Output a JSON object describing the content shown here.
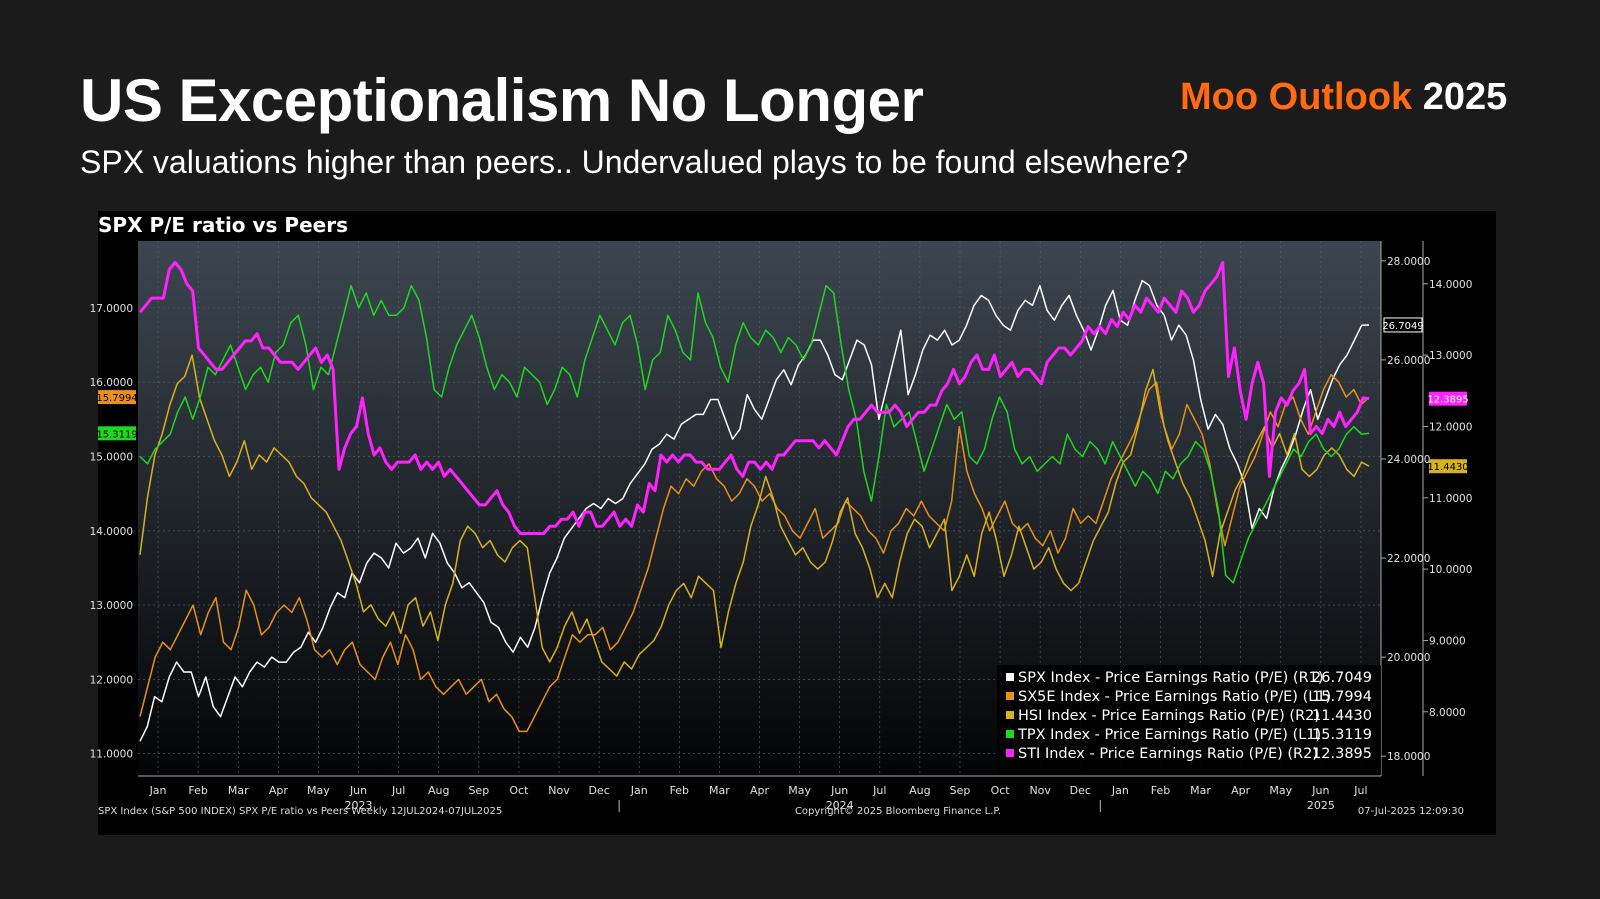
{
  "slide": {
    "title": "US Exceptionalism No Longer",
    "subtitle": "SPX valuations higher than peers.. Undervalued plays to be found elsewhere?",
    "brand_accent": "Moo Outlook",
    "brand_year": "2025"
  },
  "colors": {
    "background": "#1b1b1b",
    "brand_accent": "#ff6a13",
    "spx": "#ffffff",
    "sx5e": "#e8901a",
    "hsi": "#d9b01e",
    "tpx": "#1ed81e",
    "sti": "#ff22ff"
  },
  "chart_data": {
    "type": "line",
    "title": "SPX P/E ratio vs Peers",
    "footer_left": "SPX Index (S&P 500 INDEX) SPX P/E ratio vs Peers  Weekly 12JUL2024-07JUL2025",
    "footer_center": "Copyright© 2025 Bloomberg Finance L.P.",
    "footer_right": "07-Jul-2025 12:09:30",
    "frequency": "weekly",
    "x_axis": {
      "months": [
        "Jan",
        "Feb",
        "Mar",
        "Apr",
        "May",
        "Jun",
        "Jul",
        "Aug",
        "Sep",
        "Oct",
        "Nov",
        "Dec",
        "Jan",
        "Feb",
        "Mar",
        "Apr",
        "May",
        "Jun",
        "Jul",
        "Aug",
        "Sep",
        "Oct",
        "Nov",
        "Dec",
        "Jan",
        "Feb",
        "Mar",
        "Apr",
        "May",
        "Jun",
        "Jul"
      ],
      "years": [
        "2023",
        "2024",
        "2025"
      ]
    },
    "left_axis": {
      "ticks": [
        "11.0000",
        "12.0000",
        "13.0000",
        "14.0000",
        "15.0000",
        "16.0000",
        "17.0000"
      ],
      "range": [
        10.7,
        17.9
      ]
    },
    "right_axis_r1": {
      "ticks": [
        "18.0000",
        "20.0000",
        "22.0000",
        "24.0000",
        "26.0000",
        "28.0000"
      ],
      "range": [
        17.6,
        28.4
      ]
    },
    "right_axis_r2": {
      "ticks": [
        "8.0000",
        "9.0000",
        "10.0000",
        "11.0000",
        "12.0000",
        "13.0000",
        "14.0000"
      ],
      "range": [
        7.1,
        14.6
      ]
    },
    "legend_position": "bottom-right",
    "series": [
      {
        "key": "spx",
        "name": "SPX Index - Price Earnings Ratio (P/E) (R1)",
        "axis": "R1",
        "last": "26.7049",
        "values": [
          18.3,
          18.6,
          19.2,
          19.1,
          19.6,
          19.9,
          19.7,
          19.7,
          19.2,
          19.6,
          19.0,
          18.8,
          19.2,
          19.6,
          19.4,
          19.7,
          19.9,
          19.8,
          20.0,
          19.9,
          19.9,
          20.1,
          20.2,
          20.5,
          20.3,
          20.6,
          21.0,
          21.3,
          21.2,
          21.7,
          21.5,
          21.9,
          22.1,
          22.0,
          21.8,
          22.3,
          22.1,
          22.2,
          22.4,
          22.0,
          22.5,
          22.3,
          21.9,
          21.7,
          21.4,
          21.5,
          21.3,
          21.1,
          20.7,
          20.6,
          20.3,
          20.1,
          20.4,
          20.2,
          20.6,
          21.2,
          21.7,
          22.0,
          22.4,
          22.6,
          22.8,
          23.0,
          23.1,
          23.0,
          23.2,
          23.1,
          23.2,
          23.5,
          23.7,
          23.9,
          24.2,
          24.3,
          24.5,
          24.4,
          24.7,
          24.8,
          24.9,
          24.9,
          25.2,
          25.2,
          24.8,
          24.4,
          24.6,
          25.3,
          25.0,
          24.8,
          25.2,
          25.6,
          25.8,
          25.5,
          25.9,
          26.1,
          26.4,
          26.4,
          26.1,
          25.7,
          25.6,
          26.0,
          26.4,
          26.3,
          25.9,
          24.8,
          25.4,
          26.0,
          26.6,
          25.3,
          25.7,
          26.2,
          26.5,
          26.4,
          26.6,
          26.3,
          26.4,
          26.7,
          27.1,
          27.3,
          27.2,
          26.9,
          26.7,
          26.6,
          27.0,
          27.2,
          27.1,
          27.5,
          27.0,
          26.8,
          27.1,
          27.3,
          26.9,
          26.6,
          26.2,
          26.6,
          27.1,
          27.4,
          26.8,
          26.7,
          27.2,
          27.6,
          27.5,
          27.1,
          26.9,
          26.4,
          26.7,
          26.5,
          26.0,
          25.2,
          24.6,
          24.9,
          24.7,
          24.2,
          23.9,
          23.5,
          22.6,
          23.0,
          22.8,
          23.4,
          23.8,
          24.1,
          24.5,
          25.0,
          25.4,
          24.8,
          25.2,
          25.6,
          25.9,
          26.1,
          26.4,
          26.7,
          26.7049
        ]
      },
      {
        "key": "sx5e",
        "name": "SX5E Index - Price Earnings Ratio (P/E) (L1)",
        "axis": "L1",
        "last": "15.7994",
        "values": [
          11.5,
          11.9,
          12.3,
          12.5,
          12.4,
          12.6,
          12.8,
          13.0,
          12.6,
          12.9,
          13.1,
          12.5,
          12.4,
          12.7,
          13.2,
          13.0,
          12.6,
          12.7,
          12.9,
          13.0,
          12.9,
          13.1,
          12.8,
          12.4,
          12.3,
          12.4,
          12.2,
          12.4,
          12.5,
          12.2,
          12.1,
          12.0,
          12.3,
          12.5,
          12.2,
          12.6,
          12.4,
          12.0,
          12.1,
          11.9,
          11.8,
          11.9,
          12.0,
          11.8,
          11.9,
          12.0,
          11.7,
          11.8,
          11.6,
          11.5,
          11.3,
          11.3,
          11.5,
          11.7,
          11.9,
          12.0,
          12.3,
          12.6,
          12.5,
          12.6,
          12.6,
          12.7,
          12.4,
          12.5,
          12.7,
          12.9,
          13.2,
          13.5,
          13.9,
          14.3,
          14.6,
          14.5,
          14.7,
          14.6,
          14.8,
          14.9,
          14.7,
          14.6,
          14.4,
          14.5,
          14.7,
          14.6,
          14.4,
          14.5,
          14.3,
          14.2,
          14.0,
          13.9,
          14.1,
          14.3,
          13.9,
          14.0,
          14.1,
          14.4,
          14.3,
          14.2,
          14.0,
          13.9,
          13.7,
          14.0,
          14.1,
          14.3,
          14.2,
          14.4,
          14.2,
          14.1,
          14.0,
          14.4,
          15.4,
          14.8,
          14.5,
          14.3,
          14.0,
          14.2,
          14.4,
          14.1,
          14.0,
          14.1,
          13.9,
          13.8,
          14.0,
          13.7,
          13.9,
          14.3,
          14.1,
          14.2,
          14.1,
          14.4,
          14.7,
          14.9,
          15.1,
          15.3,
          15.6,
          15.9,
          16.0,
          15.4,
          15.1,
          15.3,
          15.7,
          15.5,
          15.3,
          14.9,
          14.3,
          13.8,
          14.2,
          14.6,
          14.8,
          15.0,
          15.3,
          15.6,
          15.4,
          15.7,
          15.8,
          15.5,
          15.3,
          15.6,
          15.9,
          16.1,
          16.0,
          15.8,
          15.9,
          15.7,
          15.7994
        ]
      },
      {
        "key": "hsi",
        "name": "HSI Index - Price Earnings Ratio (P/E) (R2)",
        "axis": "R2",
        "last": "11.4430",
        "values": [
          10.2,
          11.0,
          11.6,
          11.9,
          12.3,
          12.6,
          12.7,
          13.0,
          12.4,
          12.1,
          11.8,
          11.6,
          11.3,
          11.5,
          11.8,
          11.4,
          11.6,
          11.5,
          11.7,
          11.6,
          11.5,
          11.3,
          11.2,
          11.0,
          10.9,
          10.8,
          10.6,
          10.4,
          10.1,
          9.8,
          9.4,
          9.5,
          9.3,
          9.2,
          9.4,
          9.1,
          9.5,
          9.6,
          9.2,
          9.4,
          9.0,
          9.5,
          9.8,
          10.4,
          10.6,
          10.5,
          10.3,
          10.4,
          10.2,
          10.1,
          10.3,
          10.4,
          10.3,
          9.6,
          8.9,
          8.7,
          8.9,
          9.2,
          9.4,
          9.1,
          9.3,
          9.0,
          8.7,
          8.6,
          8.5,
          8.7,
          8.6,
          8.8,
          8.9,
          9.0,
          9.2,
          9.5,
          9.7,
          9.8,
          9.6,
          9.9,
          9.8,
          9.7,
          8.9,
          9.4,
          9.8,
          10.1,
          10.6,
          10.9,
          11.3,
          11.0,
          10.6,
          10.4,
          10.2,
          10.3,
          10.1,
          10.0,
          10.1,
          10.4,
          10.8,
          11.0,
          10.5,
          10.3,
          10.0,
          9.6,
          9.8,
          9.6,
          10.1,
          10.5,
          10.7,
          10.6,
          10.3,
          10.5,
          10.7,
          9.7,
          9.9,
          10.2,
          9.9,
          10.5,
          10.8,
          10.4,
          9.9,
          10.2,
          10.6,
          10.3,
          10.0,
          10.1,
          10.3,
          10.0,
          9.8,
          9.7,
          9.8,
          10.1,
          10.4,
          10.6,
          10.8,
          11.2,
          11.5,
          11.6,
          12.0,
          12.5,
          12.8,
          12.2,
          11.8,
          11.5,
          11.2,
          11.0,
          10.7,
          10.4,
          9.9,
          10.5,
          10.8,
          11.1,
          11.3,
          11.6,
          11.8,
          12.0,
          11.7,
          11.9,
          11.6,
          11.9,
          11.4,
          11.3,
          11.4,
          11.6,
          11.7,
          11.6,
          11.4,
          11.3,
          11.5,
          11.443
        ]
      },
      {
        "key": "tpx",
        "name": "TPX Index - Price Earnings Ratio (P/E) (L1)",
        "axis": "L1",
        "last": "15.3119",
        "values": [
          15.0,
          14.9,
          15.1,
          15.2,
          15.3,
          15.6,
          15.8,
          15.5,
          15.8,
          16.2,
          16.1,
          16.3,
          16.5,
          16.2,
          15.9,
          16.1,
          16.2,
          16.0,
          16.4,
          16.5,
          16.8,
          16.9,
          16.5,
          15.9,
          16.2,
          16.1,
          16.5,
          16.9,
          17.3,
          17.0,
          17.2,
          16.9,
          17.1,
          16.9,
          16.9,
          17.0,
          17.3,
          17.1,
          16.6,
          15.9,
          15.8,
          16.2,
          16.5,
          16.7,
          16.9,
          16.6,
          16.2,
          15.9,
          16.1,
          16.0,
          15.8,
          16.2,
          16.1,
          16.0,
          15.7,
          15.9,
          16.2,
          16.1,
          15.8,
          16.3,
          16.6,
          16.9,
          16.7,
          16.5,
          16.8,
          16.9,
          16.5,
          15.9,
          16.3,
          16.4,
          16.9,
          16.7,
          16.4,
          16.3,
          17.2,
          16.8,
          16.6,
          16.2,
          16.0,
          16.5,
          16.8,
          16.6,
          16.5,
          16.7,
          16.6,
          16.4,
          16.6,
          16.5,
          16.3,
          16.5,
          16.9,
          17.3,
          17.2,
          16.5,
          15.9,
          15.5,
          14.8,
          14.4,
          15.0,
          15.7,
          15.4,
          15.5,
          15.6,
          15.2,
          14.8,
          15.1,
          15.4,
          15.7,
          15.5,
          15.6,
          15.0,
          14.9,
          15.1,
          15.5,
          15.8,
          15.6,
          15.1,
          14.9,
          15.0,
          14.8,
          14.9,
          15.0,
          14.9,
          15.3,
          15.1,
          15.0,
          15.2,
          15.1,
          14.9,
          15.2,
          15.0,
          14.8,
          14.6,
          14.8,
          14.7,
          14.5,
          14.8,
          14.7,
          14.9,
          15.0,
          15.2,
          15.1,
          14.8,
          14.3,
          13.4,
          13.3,
          13.6,
          13.9,
          14.1,
          14.3,
          14.5,
          14.7,
          14.9,
          15.1,
          15.0,
          15.2,
          15.3,
          15.1,
          15.0,
          15.1,
          15.3,
          15.4,
          15.3,
          15.3119
        ]
      },
      {
        "key": "sti",
        "name": "STI Index - Price Earnings Ratio (P/E) (R2)",
        "axis": "R2",
        "last": "12.3895",
        "values": [
          13.6,
          13.7,
          13.8,
          13.8,
          13.8,
          14.2,
          14.3,
          14.2,
          14.0,
          13.9,
          13.1,
          13.0,
          12.9,
          12.8,
          12.8,
          12.9,
          13.0,
          13.1,
          13.2,
          13.2,
          13.3,
          13.1,
          13.1,
          13.0,
          12.9,
          12.9,
          12.9,
          12.8,
          12.9,
          13.0,
          13.1,
          12.9,
          13.0,
          12.8,
          11.4,
          11.7,
          11.9,
          12.0,
          12.4,
          11.9,
          11.6,
          11.7,
          11.5,
          11.4,
          11.5,
          11.5,
          11.5,
          11.6,
          11.4,
          11.5,
          11.4,
          11.5,
          11.3,
          11.4,
          11.3,
          11.2,
          11.1,
          11.0,
          10.9,
          10.9,
          11.0,
          11.1,
          10.9,
          10.8,
          10.6,
          10.5,
          10.5,
          10.5,
          10.5,
          10.5,
          10.6,
          10.6,
          10.7,
          10.7,
          10.8,
          10.6,
          10.8,
          10.8,
          10.6,
          10.6,
          10.7,
          10.8,
          10.6,
          10.7,
          10.6,
          10.9,
          10.8,
          11.2,
          11.1,
          11.6,
          11.5,
          11.6,
          11.5,
          11.6,
          11.6,
          11.5,
          11.5,
          11.4,
          11.4,
          11.4,
          11.5,
          11.6,
          11.4,
          11.3,
          11.5,
          11.5,
          11.4,
          11.5,
          11.4,
          11.6,
          11.6,
          11.7,
          11.8,
          11.8,
          11.8,
          11.8,
          11.7,
          11.8,
          11.7,
          11.6,
          11.8,
          12.0,
          12.1,
          12.1,
          12.2,
          12.3,
          12.2,
          12.2,
          12.2,
          12.3,
          12.2,
          12.0,
          12.1,
          12.2,
          12.2,
          12.3,
          12.3,
          12.5,
          12.6,
          12.8,
          12.6,
          12.7,
          12.9,
          13.0,
          12.8,
          12.8,
          13.0,
          12.7,
          12.8,
          12.9,
          12.7,
          12.8,
          12.8,
          12.7,
          12.6,
          12.9,
          13.0,
          13.1,
          13.1,
          13.0,
          13.1,
          13.2,
          13.4,
          13.3,
          13.4,
          13.3,
          13.5,
          13.4,
          13.6,
          13.5,
          13.7,
          13.6,
          13.8,
          13.7,
          13.6,
          13.8,
          13.7,
          13.6,
          13.9,
          13.8,
          13.6,
          13.7,
          13.9,
          14.0,
          14.1,
          14.3,
          12.7,
          13.1,
          12.5,
          12.1,
          12.6,
          12.9,
          12.6,
          11.3,
          12.2,
          12.4,
          12.3,
          12.5,
          12.6,
          12.8,
          11.9,
          12.0,
          11.9,
          12.1,
          12.0,
          12.2,
          12.0,
          12.1,
          12.2,
          12.4,
          12.3895
        ]
      }
    ]
  }
}
